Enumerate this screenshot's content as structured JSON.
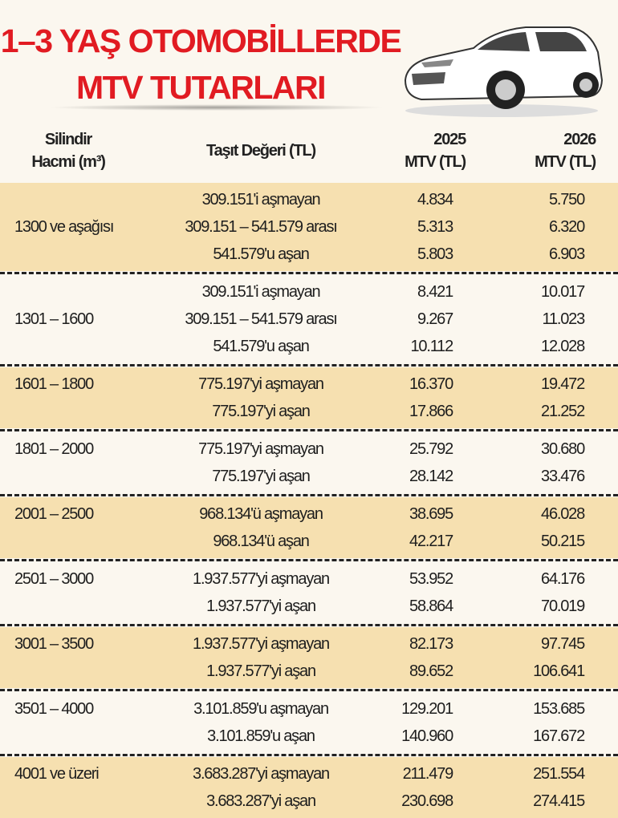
{
  "title": {
    "line1": "1–3 YAŞ OTOMOBİLLERDE",
    "line2": "MTV TUTARLARI",
    "color": "#e11b22"
  },
  "illustration": "car-icon",
  "colors": {
    "band": "#f6e0b0",
    "background": "#fbf7ef"
  },
  "headers": {
    "cylinder_line1": "Silindir",
    "cylinder_line2": "Hacmi (m³)",
    "value": "Taşıt Değeri (TL)",
    "mtv2025_line1": "2025",
    "mtv2025_line2": "MTV (TL)",
    "mtv2026_line1": "2026",
    "mtv2026_line2": "MTV (TL)"
  },
  "groups": [
    {
      "cylinder": "1300 ve aşağısı",
      "band": true,
      "rows": [
        {
          "value": "309.151'i aşmayan",
          "mtv2025": "4.834",
          "mtv2026": "5.750"
        },
        {
          "value": "309.151 – 541.579 arası",
          "mtv2025": "5.313",
          "mtv2026": "6.320"
        },
        {
          "value": "541.579'u aşan",
          "mtv2025": "5.803",
          "mtv2026": "6.903"
        }
      ]
    },
    {
      "cylinder": "1301 – 1600",
      "band": false,
      "rows": [
        {
          "value": "309.151'i aşmayan",
          "mtv2025": "8.421",
          "mtv2026": "10.017"
        },
        {
          "value": "309.151 – 541.579 arası",
          "mtv2025": "9.267",
          "mtv2026": "11.023"
        },
        {
          "value": "541.579'u aşan",
          "mtv2025": "10.112",
          "mtv2026": "12.028"
        }
      ]
    },
    {
      "cylinder": "1601 – 1800",
      "band": true,
      "rows": [
        {
          "value": "775.197'yi aşmayan",
          "mtv2025": "16.370",
          "mtv2026": "19.472"
        },
        {
          "value": "775.197'yi aşan",
          "mtv2025": "17.866",
          "mtv2026": "21.252"
        }
      ]
    },
    {
      "cylinder": "1801 – 2000",
      "band": false,
      "rows": [
        {
          "value": "775.197'yi aşmayan",
          "mtv2025": "25.792",
          "mtv2026": "30.680"
        },
        {
          "value": "775.197'yi aşan",
          "mtv2025": "28.142",
          "mtv2026": "33.476"
        }
      ]
    },
    {
      "cylinder": "2001 – 2500",
      "band": true,
      "rows": [
        {
          "value": "968.134'ü aşmayan",
          "mtv2025": "38.695",
          "mtv2026": "46.028"
        },
        {
          "value": "968.134'ü aşan",
          "mtv2025": "42.217",
          "mtv2026": "50.215"
        }
      ]
    },
    {
      "cylinder": "2501 – 3000",
      "band": false,
      "rows": [
        {
          "value": "1.937.577'yi aşmayan",
          "mtv2025": "53.952",
          "mtv2026": "64.176"
        },
        {
          "value": "1.937.577'yi aşan",
          "mtv2025": "58.864",
          "mtv2026": "70.019"
        }
      ]
    },
    {
      "cylinder": "3001 – 3500",
      "band": true,
      "rows": [
        {
          "value": "1.937.577'yi aşmayan",
          "mtv2025": "82.173",
          "mtv2026": "97.745"
        },
        {
          "value": "1.937.577'yi aşan",
          "mtv2025": "89.652",
          "mtv2026": "106.641"
        }
      ]
    },
    {
      "cylinder": "3501 – 4000",
      "band": false,
      "rows": [
        {
          "value": "3.101.859'u aşmayan",
          "mtv2025": "129.201",
          "mtv2026": "153.685"
        },
        {
          "value": "3.101.859'u aşan",
          "mtv2025": "140.960",
          "mtv2026": "167.672"
        }
      ]
    },
    {
      "cylinder": "4001 ve üzeri",
      "band": true,
      "rows": [
        {
          "value": "3.683.287'yi aşmayan",
          "mtv2025": "211.479",
          "mtv2026": "251.554"
        },
        {
          "value": "3.683.287'yi aşan",
          "mtv2025": "230.698",
          "mtv2026": "274.415"
        }
      ]
    }
  ]
}
